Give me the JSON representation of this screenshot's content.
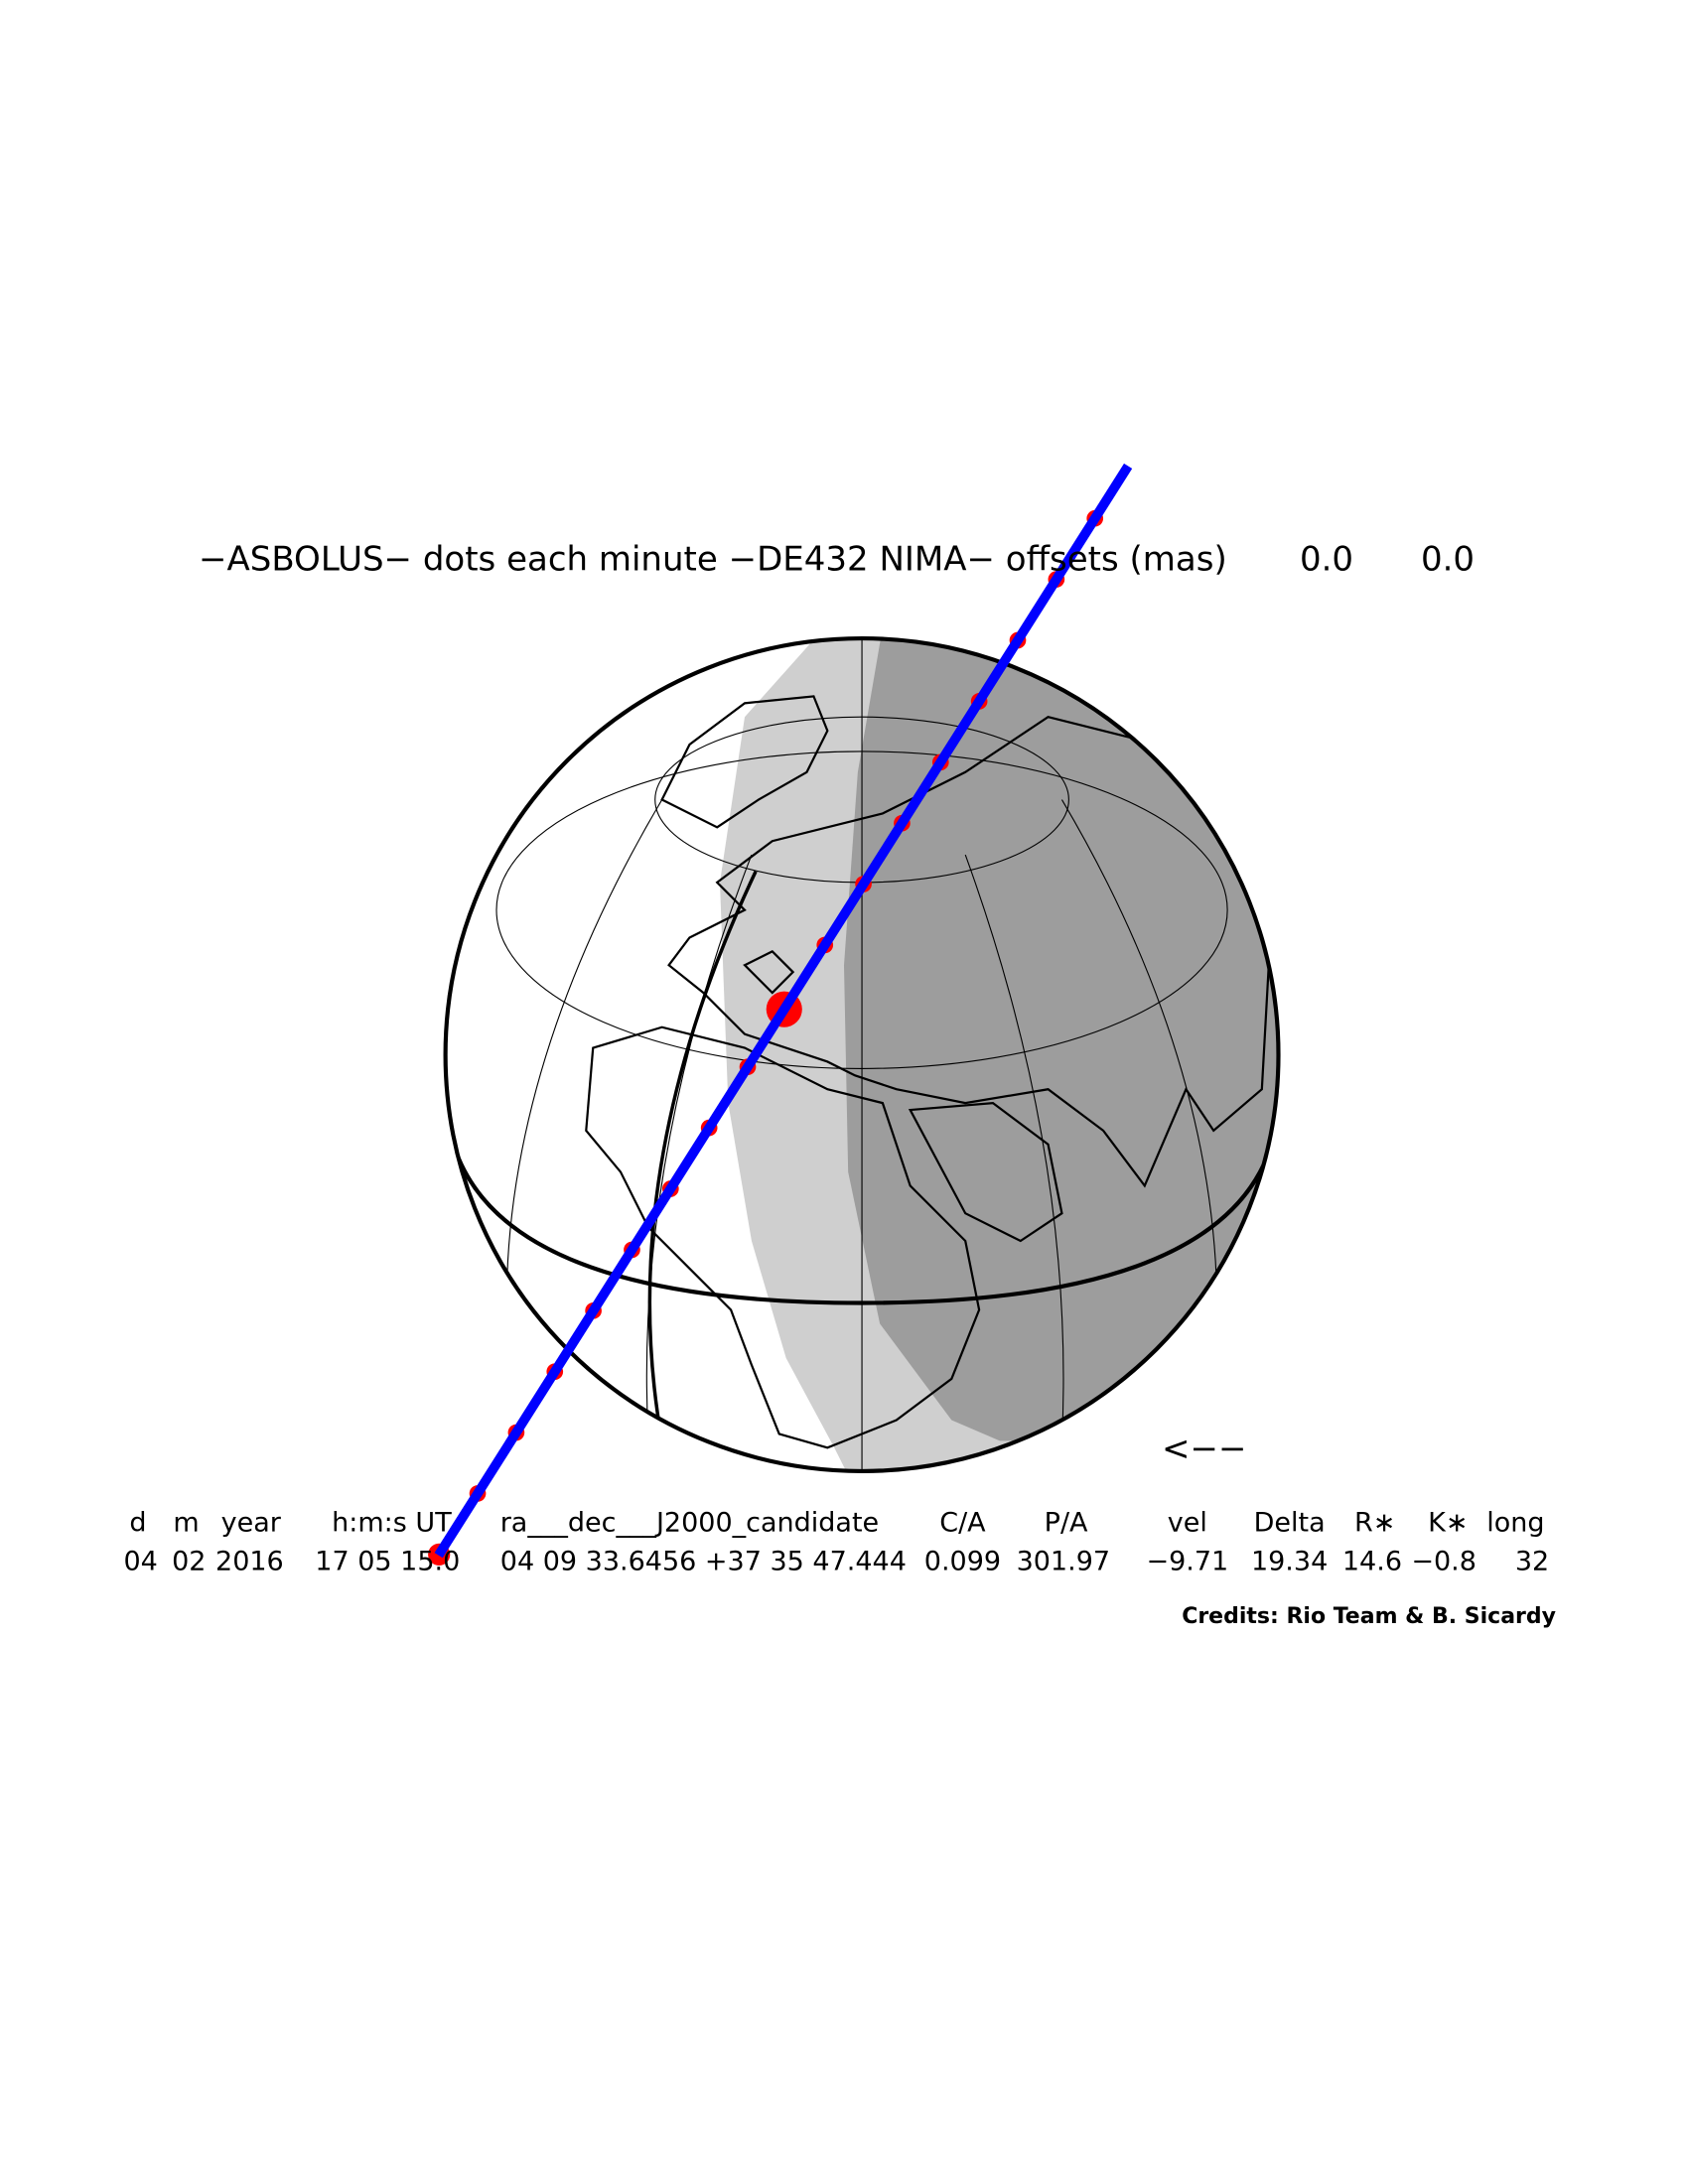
{
  "title": {
    "text": "−ASBOLUS− dots each minute −DE432 NIMA− offsets (mas)",
    "offsets": [
      "0.0",
      "0.0"
    ]
  },
  "table": {
    "headers": [
      "d",
      "m",
      "year",
      "h:m:s UT",
      "ra___dec___J2000_candidate",
      "C/A",
      "P/A",
      "vel",
      "Delta",
      "R∗",
      "K∗",
      "long"
    ],
    "rows": [
      [
        "04",
        "02",
        "2016",
        "17 05 15.0",
        "04 09 33.6456 +37 35 47.444",
        "0.099",
        "301.97",
        "−9.71",
        "19.34",
        "14.6",
        "−0.8",
        "32"
      ]
    ]
  },
  "direction": "<−−",
  "credits": "Credits: Rio Team & B. Sicardy"
}
